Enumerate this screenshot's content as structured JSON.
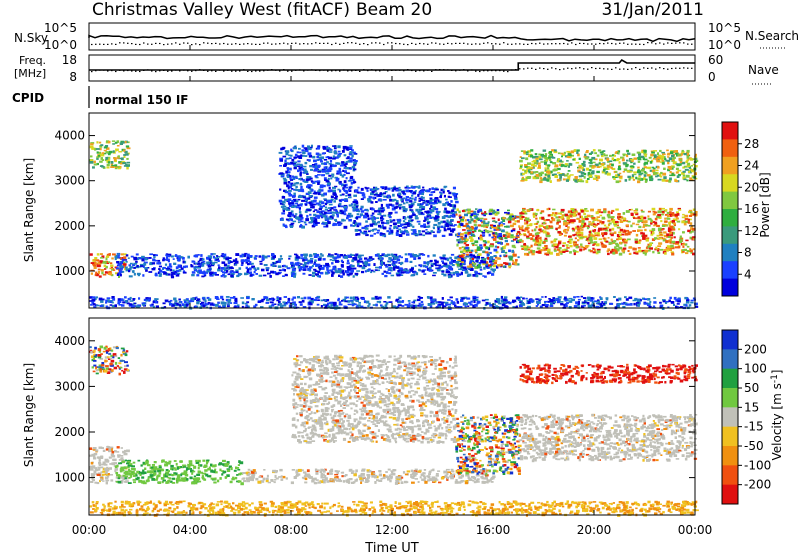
{
  "header": {
    "title": "Christmas Valley West (fitACF)",
    "beam": "Beam 20",
    "date": "31/Jan/2011"
  },
  "top_panels": {
    "nsky_label": "N.Sky",
    "nsky_ticks": [
      "10^5",
      "10^0"
    ],
    "nsearch_label": "N.Search",
    "nsearch_ticks": [
      "10^5",
      "10^0"
    ],
    "freq_label": "Freq.",
    "freq_unit": "[MHz]",
    "freq_ticks": [
      "18",
      "8"
    ],
    "nave_label": "Nave",
    "nave_ticks": [
      "60",
      "0"
    ],
    "cpid_label": "CPID",
    "cpid_text": "normal 150 IF"
  },
  "chart_data": [
    {
      "type": "heatmap",
      "title": "",
      "xlabel": "Time UT",
      "ylabel": "Slant Range [km]",
      "x_ticks": [
        "00:00",
        "04:00",
        "08:00",
        "12:00",
        "16:00",
        "20:00",
        "00:00"
      ],
      "x_range_hours": [
        0,
        24
      ],
      "y_ticks": [
        4000,
        3000,
        2000,
        1000
      ],
      "ylim": [
        180,
        4500
      ],
      "colorbar": {
        "label": "Power [dB]",
        "ticks": [
          28,
          24,
          20,
          16,
          12,
          8,
          4
        ],
        "range": [
          0,
          32
        ],
        "colors": [
          "#0000dd",
          "#1a40ff",
          "#2080c0",
          "#3a9a7c",
          "#2fae40",
          "#80c840",
          "#d8d820",
          "#f0a020",
          "#f06010",
          "#e01010"
        ]
      },
      "features": [
        {
          "time_start": 0.0,
          "time_end": 1.4,
          "range_start": 900,
          "range_end": 1400,
          "level": "high"
        },
        {
          "time_start": 0.0,
          "time_end": 1.5,
          "range_start": 3300,
          "range_end": 3900,
          "level": "medium"
        },
        {
          "time_start": 1.0,
          "time_end": 16.0,
          "range_start": 900,
          "range_end": 1400,
          "level": "low"
        },
        {
          "time_start": 7.5,
          "time_end": 10.5,
          "range_start": 2000,
          "range_end": 3800,
          "level": "low"
        },
        {
          "time_start": 10.5,
          "time_end": 14.5,
          "range_start": 1800,
          "range_end": 2900,
          "level": "low"
        },
        {
          "time_start": 14.5,
          "time_end": 17.0,
          "range_start": 1100,
          "range_end": 2400,
          "level": "mixed"
        },
        {
          "time_start": 17.0,
          "time_end": 24.0,
          "range_start": 1400,
          "range_end": 2400,
          "level": "high"
        },
        {
          "time_start": 17.0,
          "time_end": 24.0,
          "range_start": 3000,
          "range_end": 3700,
          "level": "medium"
        },
        {
          "time_start": 0.0,
          "time_end": 24.0,
          "range_start": 200,
          "range_end": 450,
          "level": "low"
        }
      ]
    },
    {
      "type": "heatmap",
      "title": "",
      "xlabel": "Time UT",
      "ylabel": "Slant Range [km]",
      "x_ticks": [
        "00:00",
        "04:00",
        "08:00",
        "12:00",
        "16:00",
        "20:00",
        "00:00"
      ],
      "x_range_hours": [
        0,
        24
      ],
      "y_ticks": [
        4000,
        3000,
        2000,
        1000
      ],
      "ylim": [
        180,
        4500
      ],
      "colorbar": {
        "label": "Velocity [m s^-1]",
        "ticks": [
          "200",
          "100",
          "50",
          "15",
          "-15",
          "-50",
          "-100",
          "-200"
        ],
        "colors": [
          "#1030d0",
          "#3070c0",
          "#20a040",
          "#70c840",
          "#c0c0b8",
          "#f0c020",
          "#f09010",
          "#f05010",
          "#e01010"
        ]
      },
      "features": [
        {
          "time_start": 0.0,
          "time_end": 1.5,
          "range_start": 900,
          "range_end": 1700,
          "level": "ground-scatter"
        },
        {
          "time_start": 0.0,
          "time_end": 1.5,
          "range_start": 3300,
          "range_end": 3900,
          "level": "mixed"
        },
        {
          "time_start": 1.0,
          "time_end": 6.0,
          "range_start": 900,
          "range_end": 1400,
          "level": "green"
        },
        {
          "time_start": 6.0,
          "time_end": 16.0,
          "range_start": 900,
          "range_end": 1200,
          "level": "ground-scatter"
        },
        {
          "time_start": 8.0,
          "time_end": 14.5,
          "range_start": 1800,
          "range_end": 3700,
          "level": "ground-scatter"
        },
        {
          "time_start": 14.5,
          "time_end": 17.0,
          "range_start": 1100,
          "range_end": 2400,
          "level": "mixed"
        },
        {
          "time_start": 17.0,
          "time_end": 24.0,
          "range_start": 1400,
          "range_end": 2400,
          "level": "ground-scatter"
        },
        {
          "time_start": 17.0,
          "time_end": 24.0,
          "range_start": 3100,
          "range_end": 3500,
          "level": "red"
        },
        {
          "time_start": 0.0,
          "time_end": 24.0,
          "range_start": 200,
          "range_end": 500,
          "level": "orange"
        }
      ]
    }
  ]
}
